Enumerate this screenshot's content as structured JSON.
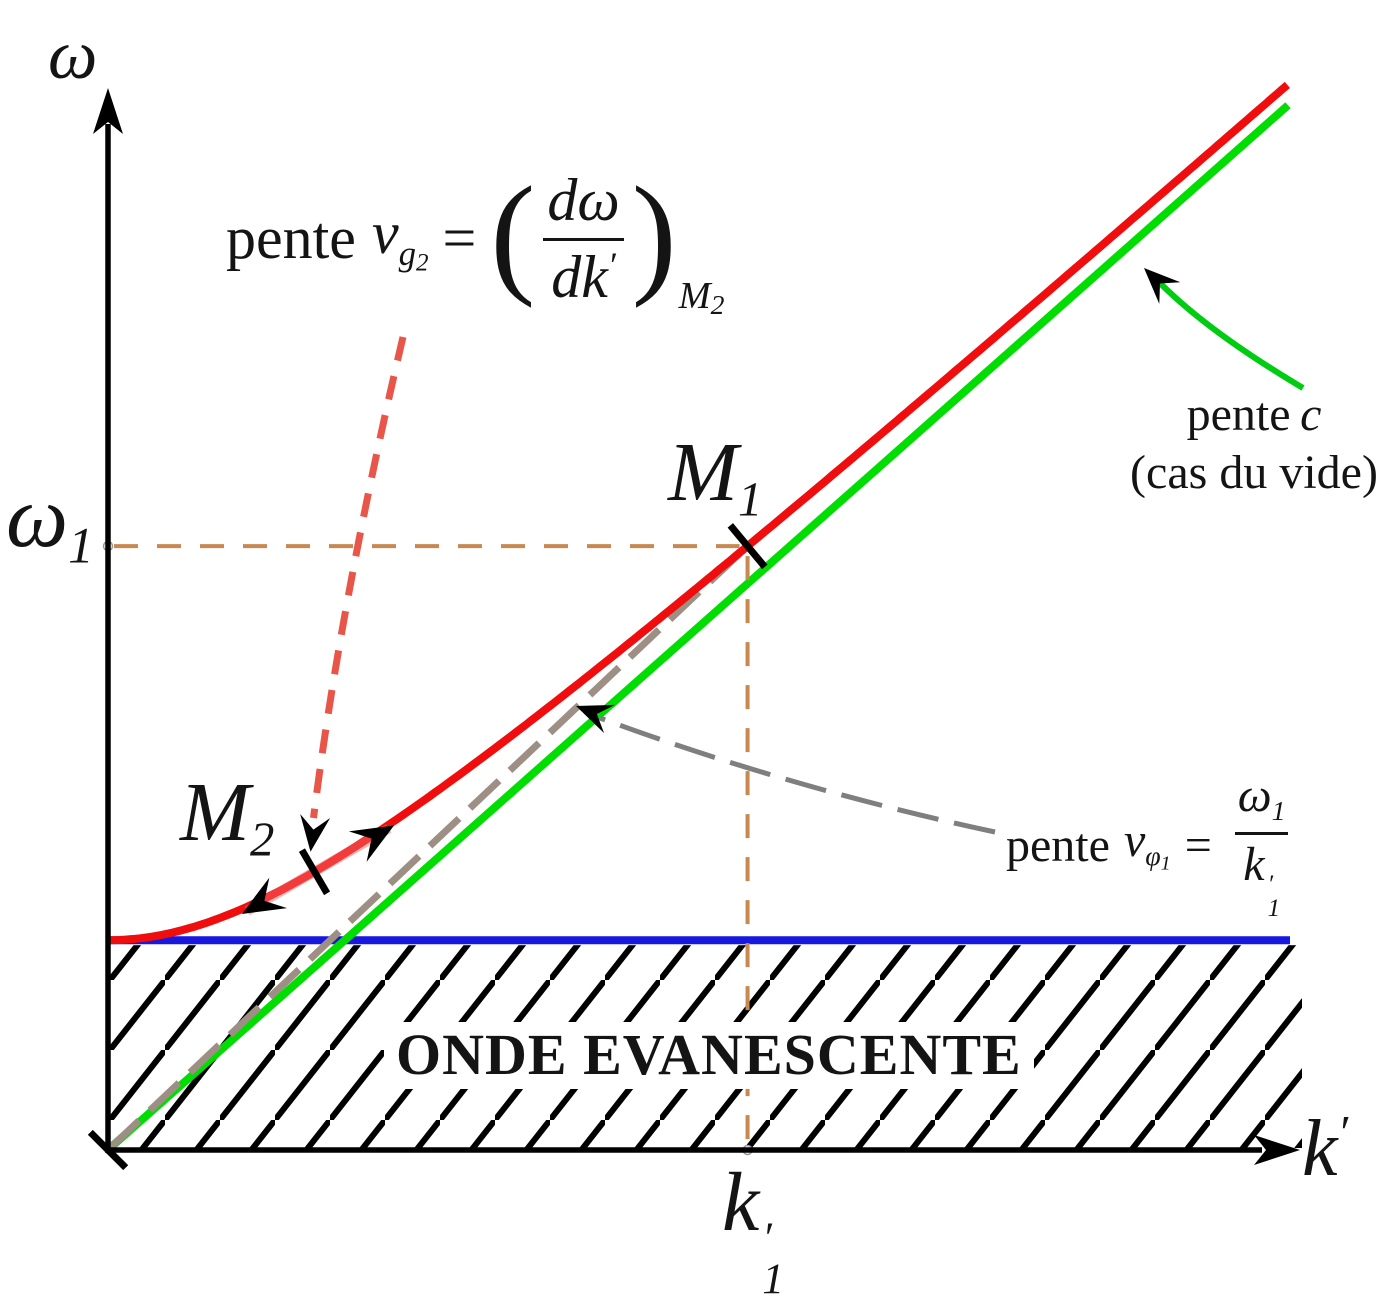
{
  "axes": {
    "y_label": "ω",
    "x_label_base": "k",
    "x_label_prime": "′",
    "y_tick_base": "ω",
    "y_tick_sub": "1",
    "x_tick_base": "k",
    "x_tick_prime": "′",
    "x_tick_sub": "1"
  },
  "points": {
    "m1_base": "M",
    "m1_sub": "1",
    "m2_base": "M",
    "m2_sub": "2"
  },
  "labels": {
    "group_velocity": {
      "pente": "pente",
      "v": "v",
      "v_sub": "g",
      "v_sub2": "2",
      "eq": "=",
      "paren_open": "(",
      "num": "dω",
      "den": "dk",
      "den_prime": "′",
      "paren_close": ")",
      "at_base": "M",
      "at_sub": "2"
    },
    "light": {
      "pente": "pente",
      "c": "c",
      "line2": "(cas du vide)"
    },
    "phase": {
      "pente": "pente",
      "v": "v",
      "v_sub": "φ",
      "v_sub2": "1",
      "eq": "=",
      "num_base": "ω",
      "num_sub": "1",
      "den_base": "k",
      "den_prime": "′",
      "den_sub": "1"
    },
    "evanescent": "ONDE EVANESCENTE"
  },
  "colors": {
    "dispersion_curve": "#f00d0d",
    "light_line": "#00dd00",
    "cutoff_line": "#1717e0",
    "phase_line": "#9d8f84",
    "guide_dash": "#c8884f",
    "annotation_red": "#e8564a",
    "annotation_gray": "#7f7f7f",
    "annotation_green": "#00cc11",
    "tangent_pink": "rgba(244,106,106,0.5)",
    "ink": "#000000"
  },
  "chart_data": {
    "type": "line",
    "title": "",
    "xlabel": "k′",
    "ylabel": "ω",
    "x_range": [
      0,
      1
    ],
    "y_range": [
      0,
      1
    ],
    "grid": false,
    "params": {
      "omega_p": 0.197,
      "c_slope": 0.981,
      "k1": 0.542,
      "k2": 0.175
    },
    "series": [
      {
        "name": "dispersion curve",
        "equation": "omega = sqrt(omega_p^2 + (c*k)^2)",
        "color": "#f00d0d",
        "style": "solid"
      },
      {
        "name": "light line pente c (cas du vide)",
        "equation": "omega = c*k",
        "color": "#00dd00",
        "style": "solid"
      },
      {
        "name": "cutoff line omega_p",
        "equation": "omega = omega_p",
        "color": "#1717e0",
        "style": "solid"
      },
      {
        "name": "phase velocity chord pente v_phi1 = omega1/k1",
        "equation": "omega = (omega1/k1)*k for 0 <= k <= k1",
        "color": "#9d8f84",
        "style": "dashed"
      }
    ],
    "points": [
      {
        "label": "M1",
        "k": 0.542,
        "omega": 0.567
      },
      {
        "label": "M2",
        "k": 0.175,
        "omega": 0.261
      }
    ],
    "guides": [
      {
        "name": "omega1 horizontal dashed guide",
        "color": "#c8884f"
      },
      {
        "name": "k1 vertical dashed guide",
        "color": "#c8884f"
      }
    ],
    "regions": [
      {
        "label": "ONDE EVANESCENTE",
        "style": "hatched",
        "below": "omega_p"
      }
    ]
  }
}
